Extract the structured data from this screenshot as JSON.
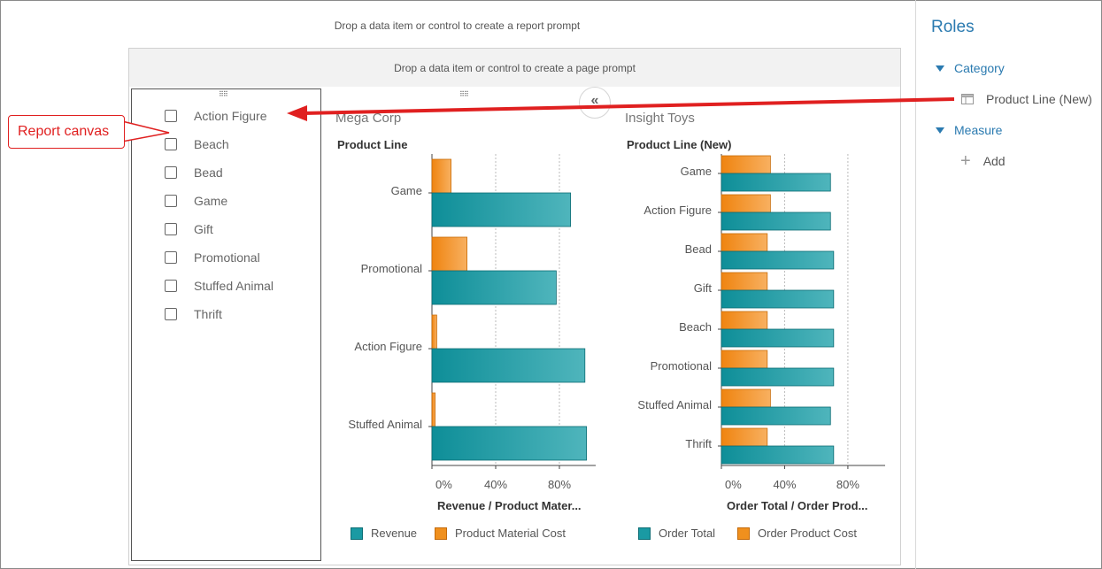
{
  "report_prompt_hint": "Drop a data item or control to create a report prompt",
  "page_prompt_hint": "Drop a data item or control to create a page prompt",
  "list_control": {
    "items": [
      "Action Figure",
      "Beach",
      "Bead",
      "Game",
      "Gift",
      "Promotional",
      "Stuffed Animal",
      "Thrift"
    ]
  },
  "collapse_button_label": "«",
  "callout_label": "Report canvas",
  "roles": {
    "title": "Roles",
    "category_label": "Category",
    "category_item": "Product Line (New)",
    "measure_label": "Measure",
    "add_label": "Add"
  },
  "colors": {
    "teal": "#1a9aa3",
    "orange": "#f0901e",
    "accent_blue": "#2a7ab0",
    "annotation_red": "#e02020"
  },
  "chart_data": [
    {
      "type": "bar",
      "orientation": "horizontal",
      "title": "Mega Corp",
      "ylabel": "Product Line",
      "xlabel": "Revenue / Product Mater...",
      "categories": [
        "Game",
        "Promotional",
        "Action Figure",
        "Stuffed Animal"
      ],
      "series": [
        {
          "name": "Product Material Cost",
          "color": "#f0901e",
          "values": [
            12,
            22,
            3,
            2
          ]
        },
        {
          "name": "Revenue",
          "color": "#1a9aa3",
          "values": [
            87,
            78,
            96,
            97
          ]
        }
      ],
      "xticks": [
        "0%",
        "40%",
        "80%"
      ],
      "xlim": [
        0,
        100
      ],
      "legend": [
        "Revenue",
        "Product Material Cost"
      ],
      "legend_position": "bottom",
      "grid": true
    },
    {
      "type": "bar",
      "orientation": "horizontal",
      "title": "Insight Toys",
      "ylabel": "Product Line (New)",
      "xlabel": "Order Total / Order Prod...",
      "categories": [
        "Game",
        "Action Figure",
        "Bead",
        "Gift",
        "Beach",
        "Promotional",
        "Stuffed Animal",
        "Thrift"
      ],
      "series": [
        {
          "name": "Order Product Cost",
          "color": "#f0901e",
          "values": [
            31,
            31,
            29,
            29,
            29,
            29,
            31,
            29
          ]
        },
        {
          "name": "Order Total",
          "color": "#1a9aa3",
          "values": [
            69,
            69,
            71,
            71,
            71,
            71,
            69,
            71
          ]
        }
      ],
      "xticks": [
        "0%",
        "40%",
        "80%"
      ],
      "xlim": [
        0,
        103
      ],
      "legend": [
        "Order Total",
        "Order Product Cost"
      ],
      "legend_position": "bottom",
      "grid": true
    }
  ]
}
